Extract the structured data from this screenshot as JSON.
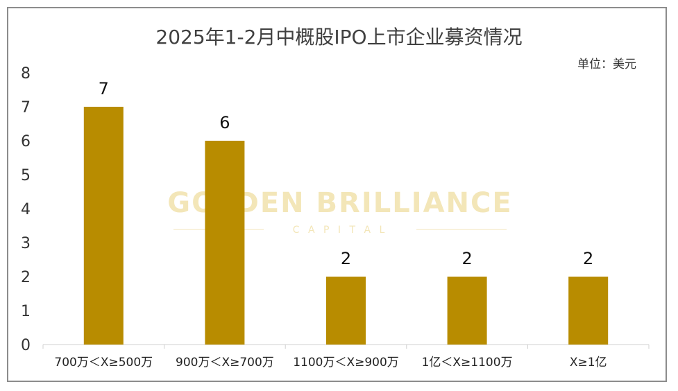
{
  "chart_data": {
    "type": "bar",
    "title": "2025年1-2月中概股IPO上市企业募资情况",
    "unit_label": "单位：美元",
    "categories": [
      "700万＜X≥500万",
      "900万＜X≥700万",
      "1100万＜X≥900万",
      "1亿＜X≥1100万",
      "X≥1亿"
    ],
    "values": [
      7,
      6,
      2,
      2,
      2
    ],
    "yticks": [
      "0",
      "1",
      "2",
      "3",
      "4",
      "5",
      "6",
      "7",
      "8"
    ],
    "ylim": [
      0,
      8
    ],
    "xlabel": "",
    "ylabel": "",
    "grid": false,
    "bar_color": "#b88c00"
  },
  "watermark": {
    "main": "GOLDEN BRILLIANCE",
    "sub": "C A P I T A L",
    "color": "#f3e6b8"
  }
}
